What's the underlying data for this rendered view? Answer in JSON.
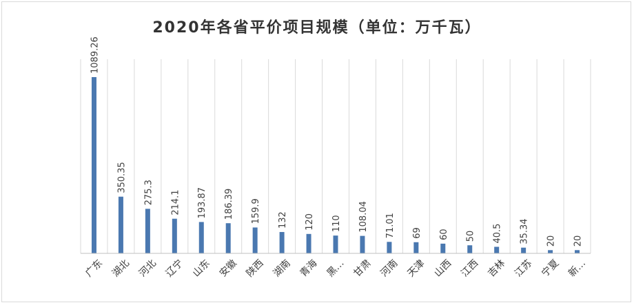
{
  "chart_data": {
    "type": "bar",
    "title": "2020年各省平价项目规模（单位：万千瓦）",
    "categories": [
      "广东",
      "湖北",
      "河北",
      "辽宁",
      "山东",
      "安徽",
      "陕西",
      "湖南",
      "青海",
      "黑…",
      "甘肃",
      "河南",
      "天津",
      "山西",
      "江西",
      "吉林",
      "江苏",
      "宁夏",
      "新…"
    ],
    "values": [
      1089.26,
      350.35,
      275.3,
      214.1,
      193.87,
      186.39,
      159.9,
      132,
      120,
      110,
      108.04,
      71.01,
      69,
      60,
      50,
      40.5,
      35.34,
      20,
      20
    ],
    "data_labels": [
      "1089.26",
      "350.35",
      "275.3",
      "214.1",
      "193.87",
      "186.39",
      "159.9",
      "132",
      "120",
      "110",
      "108.04",
      "71.01",
      "69",
      "60",
      "50",
      "40.5",
      "35.34",
      "20",
      "20"
    ],
    "xlabel": "",
    "ylabel": "",
    "ylim": [
      0,
      1150
    ],
    "grid": "vertical",
    "bar_color": "#4a78b0",
    "legend": "none"
  }
}
